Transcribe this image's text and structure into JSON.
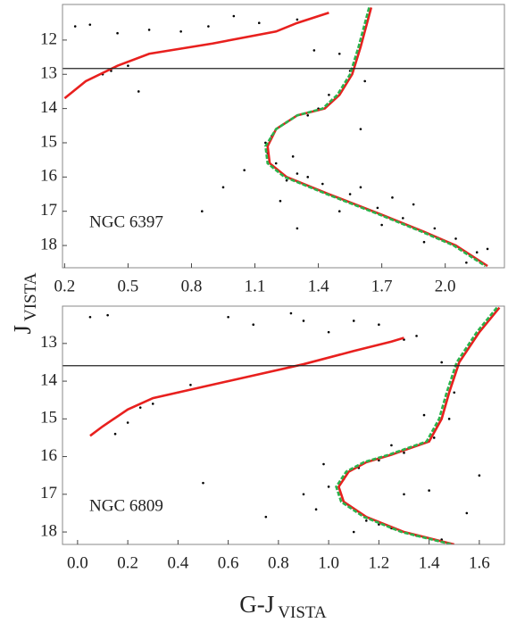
{
  "chart_data": [
    {
      "type": "scatter",
      "label": "NGC 6397",
      "xlim": [
        0.19,
        2.28
      ],
      "ylim": [
        10.96,
        18.65
      ],
      "invert_y": true,
      "xticks": [
        0.2,
        0.5,
        0.8,
        1.1,
        1.4,
        1.7,
        {
          "value": 2,
          "label": "2.0"
        }
      ],
      "yticks": [
        12,
        13,
        14,
        15,
        16,
        17,
        18
      ],
      "hline": 12.83,
      "series": [
        {
          "color": "#000000",
          "mode": "markers",
          "x": [
            0.25,
            0.32,
            0.45,
            0.6,
            0.75,
            0.88,
            1.0,
            1.12,
            1.3,
            1.38,
            0.38,
            0.42,
            0.5,
            0.55,
            1.5,
            1.55,
            1.62,
            1.45,
            1.4,
            1.35,
            1.25,
            1.18,
            1.15,
            1.16,
            1.2,
            1.3,
            1.42,
            1.55,
            1.68,
            1.8,
            1.95,
            2.05,
            2.15,
            1.75,
            1.6,
            1.9,
            2.1,
            1.25,
            1.35,
            1.05,
            0.95,
            0.85,
            1.7,
            2.2,
            1.5,
            1.3,
            1.22,
            1.28,
            1.6,
            1.85
          ],
          "values": [
            11.6,
            11.55,
            11.8,
            11.7,
            11.75,
            11.6,
            11.3,
            11.5,
            11.4,
            12.3,
            13.0,
            12.9,
            12.75,
            13.5,
            12.4,
            12.9,
            13.2,
            13.6,
            14.0,
            14.2,
            14.4,
            14.8,
            15.0,
            15.3,
            15.6,
            15.9,
            16.2,
            16.5,
            16.9,
            17.2,
            17.5,
            17.8,
            18.2,
            16.6,
            16.3,
            17.9,
            18.5,
            16.1,
            16.0,
            15.8,
            16.3,
            17.0,
            17.4,
            18.1,
            17.0,
            17.5,
            16.7,
            15.4,
            14.6,
            16.8
          ]
        },
        {
          "color": "#e8201e",
          "mode": "line",
          "x": [
            0.2,
            0.3,
            0.45,
            0.6,
            0.9,
            1.2,
            1.3,
            1.45
          ],
          "values": [
            13.7,
            13.2,
            12.75,
            12.4,
            12.1,
            11.75,
            11.5,
            11.2
          ]
        },
        {
          "color": "#e8201e",
          "mode": "line",
          "x": [
            1.65,
            1.6,
            1.56,
            1.5,
            1.43,
            1.3,
            1.2,
            1.16,
            1.17,
            1.25,
            1.45,
            1.7,
            1.9,
            2.05,
            2.2
          ],
          "values": [
            11.05,
            12.2,
            13.0,
            13.6,
            14.0,
            14.2,
            14.6,
            15.1,
            15.6,
            16.0,
            16.5,
            17.1,
            17.6,
            18.0,
            18.6
          ]
        },
        {
          "color": "#2bb24c",
          "mode": "line",
          "x": [
            1.64,
            1.59,
            1.55,
            1.49,
            1.42,
            1.3,
            1.2,
            1.15,
            1.16,
            1.24,
            1.44,
            1.69,
            1.89,
            2.04,
            2.19
          ],
          "values": [
            11.05,
            12.2,
            13.0,
            13.6,
            14.0,
            14.2,
            14.6,
            15.1,
            15.6,
            16.0,
            16.5,
            17.1,
            17.6,
            18.0,
            18.6
          ]
        }
      ]
    },
    {
      "type": "scatter",
      "label": "NGC 6809",
      "xlim": [
        -0.06,
        1.7
      ],
      "ylim": [
        12.01,
        18.33
      ],
      "invert_y": true,
      "xticks": [
        {
          "value": 0,
          "label": "0.0"
        },
        0.2,
        0.4,
        0.6,
        0.8,
        {
          "value": 1,
          "label": "1.0"
        },
        1.2,
        1.4,
        1.6
      ],
      "yticks": [
        13,
        14,
        15,
        16,
        17,
        18
      ],
      "hline": 13.59,
      "series": [
        {
          "color": "#000000",
          "mode": "markers",
          "x": [
            0.05,
            0.12,
            0.2,
            0.3,
            0.4,
            0.45,
            0.6,
            0.7,
            0.85,
            0.9,
            1.0,
            1.1,
            1.2,
            1.3,
            1.35,
            1.45,
            1.5,
            1.48,
            1.42,
            1.3,
            1.2,
            1.12,
            1.06,
            1.04,
            1.08,
            1.15,
            1.25,
            1.35,
            1.45,
            0.95,
            0.9,
            1.0,
            1.3,
            1.55,
            1.6,
            0.15,
            0.25,
            0.5,
            0.75,
            1.4,
            1.2,
            1.1,
            0.98,
            1.38,
            1.25
          ],
          "values": [
            12.3,
            12.25,
            15.1,
            14.6,
            14.3,
            14.1,
            12.3,
            12.5,
            12.2,
            12.4,
            12.7,
            12.4,
            12.5,
            12.9,
            12.8,
            13.5,
            14.3,
            15.0,
            15.5,
            15.9,
            16.1,
            16.3,
            16.6,
            17.0,
            17.3,
            17.7,
            17.9,
            18.1,
            18.2,
            17.4,
            17.0,
            16.8,
            17.0,
            17.5,
            16.5,
            15.4,
            14.7,
            16.7,
            17.6,
            16.9,
            17.8,
            18.0,
            16.2,
            14.9,
            15.7
          ]
        },
        {
          "color": "#e8201e",
          "mode": "line",
          "x": [
            0.05,
            0.1,
            0.2,
            0.3,
            0.5,
            0.7,
            0.9,
            1.1,
            1.25,
            1.3
          ],
          "values": [
            15.45,
            15.2,
            14.75,
            14.45,
            14.15,
            13.85,
            13.55,
            13.2,
            12.95,
            12.85
          ]
        },
        {
          "color": "#e8201e",
          "mode": "line",
          "x": [
            1.68,
            1.6,
            1.52,
            1.48,
            1.45,
            1.4,
            1.25,
            1.15,
            1.08,
            1.04,
            1.06,
            1.15,
            1.3,
            1.5
          ],
          "values": [
            12.05,
            12.7,
            13.5,
            14.3,
            15.0,
            15.6,
            15.95,
            16.15,
            16.4,
            16.8,
            17.2,
            17.6,
            18.0,
            18.33
          ]
        },
        {
          "color": "#2bb24c",
          "mode": "line",
          "x": [
            1.67,
            1.59,
            1.51,
            1.47,
            1.44,
            1.39,
            1.24,
            1.14,
            1.07,
            1.03,
            1.05,
            1.14,
            1.29,
            1.49
          ],
          "values": [
            12.05,
            12.7,
            13.5,
            14.3,
            15.0,
            15.6,
            15.95,
            16.15,
            16.4,
            16.8,
            17.2,
            17.6,
            18.0,
            18.33
          ]
        }
      ]
    }
  ],
  "y_label": "J",
  "y_label_sub": "VISTA",
  "x_label": "G-J",
  "x_label_sub": "VISTA"
}
